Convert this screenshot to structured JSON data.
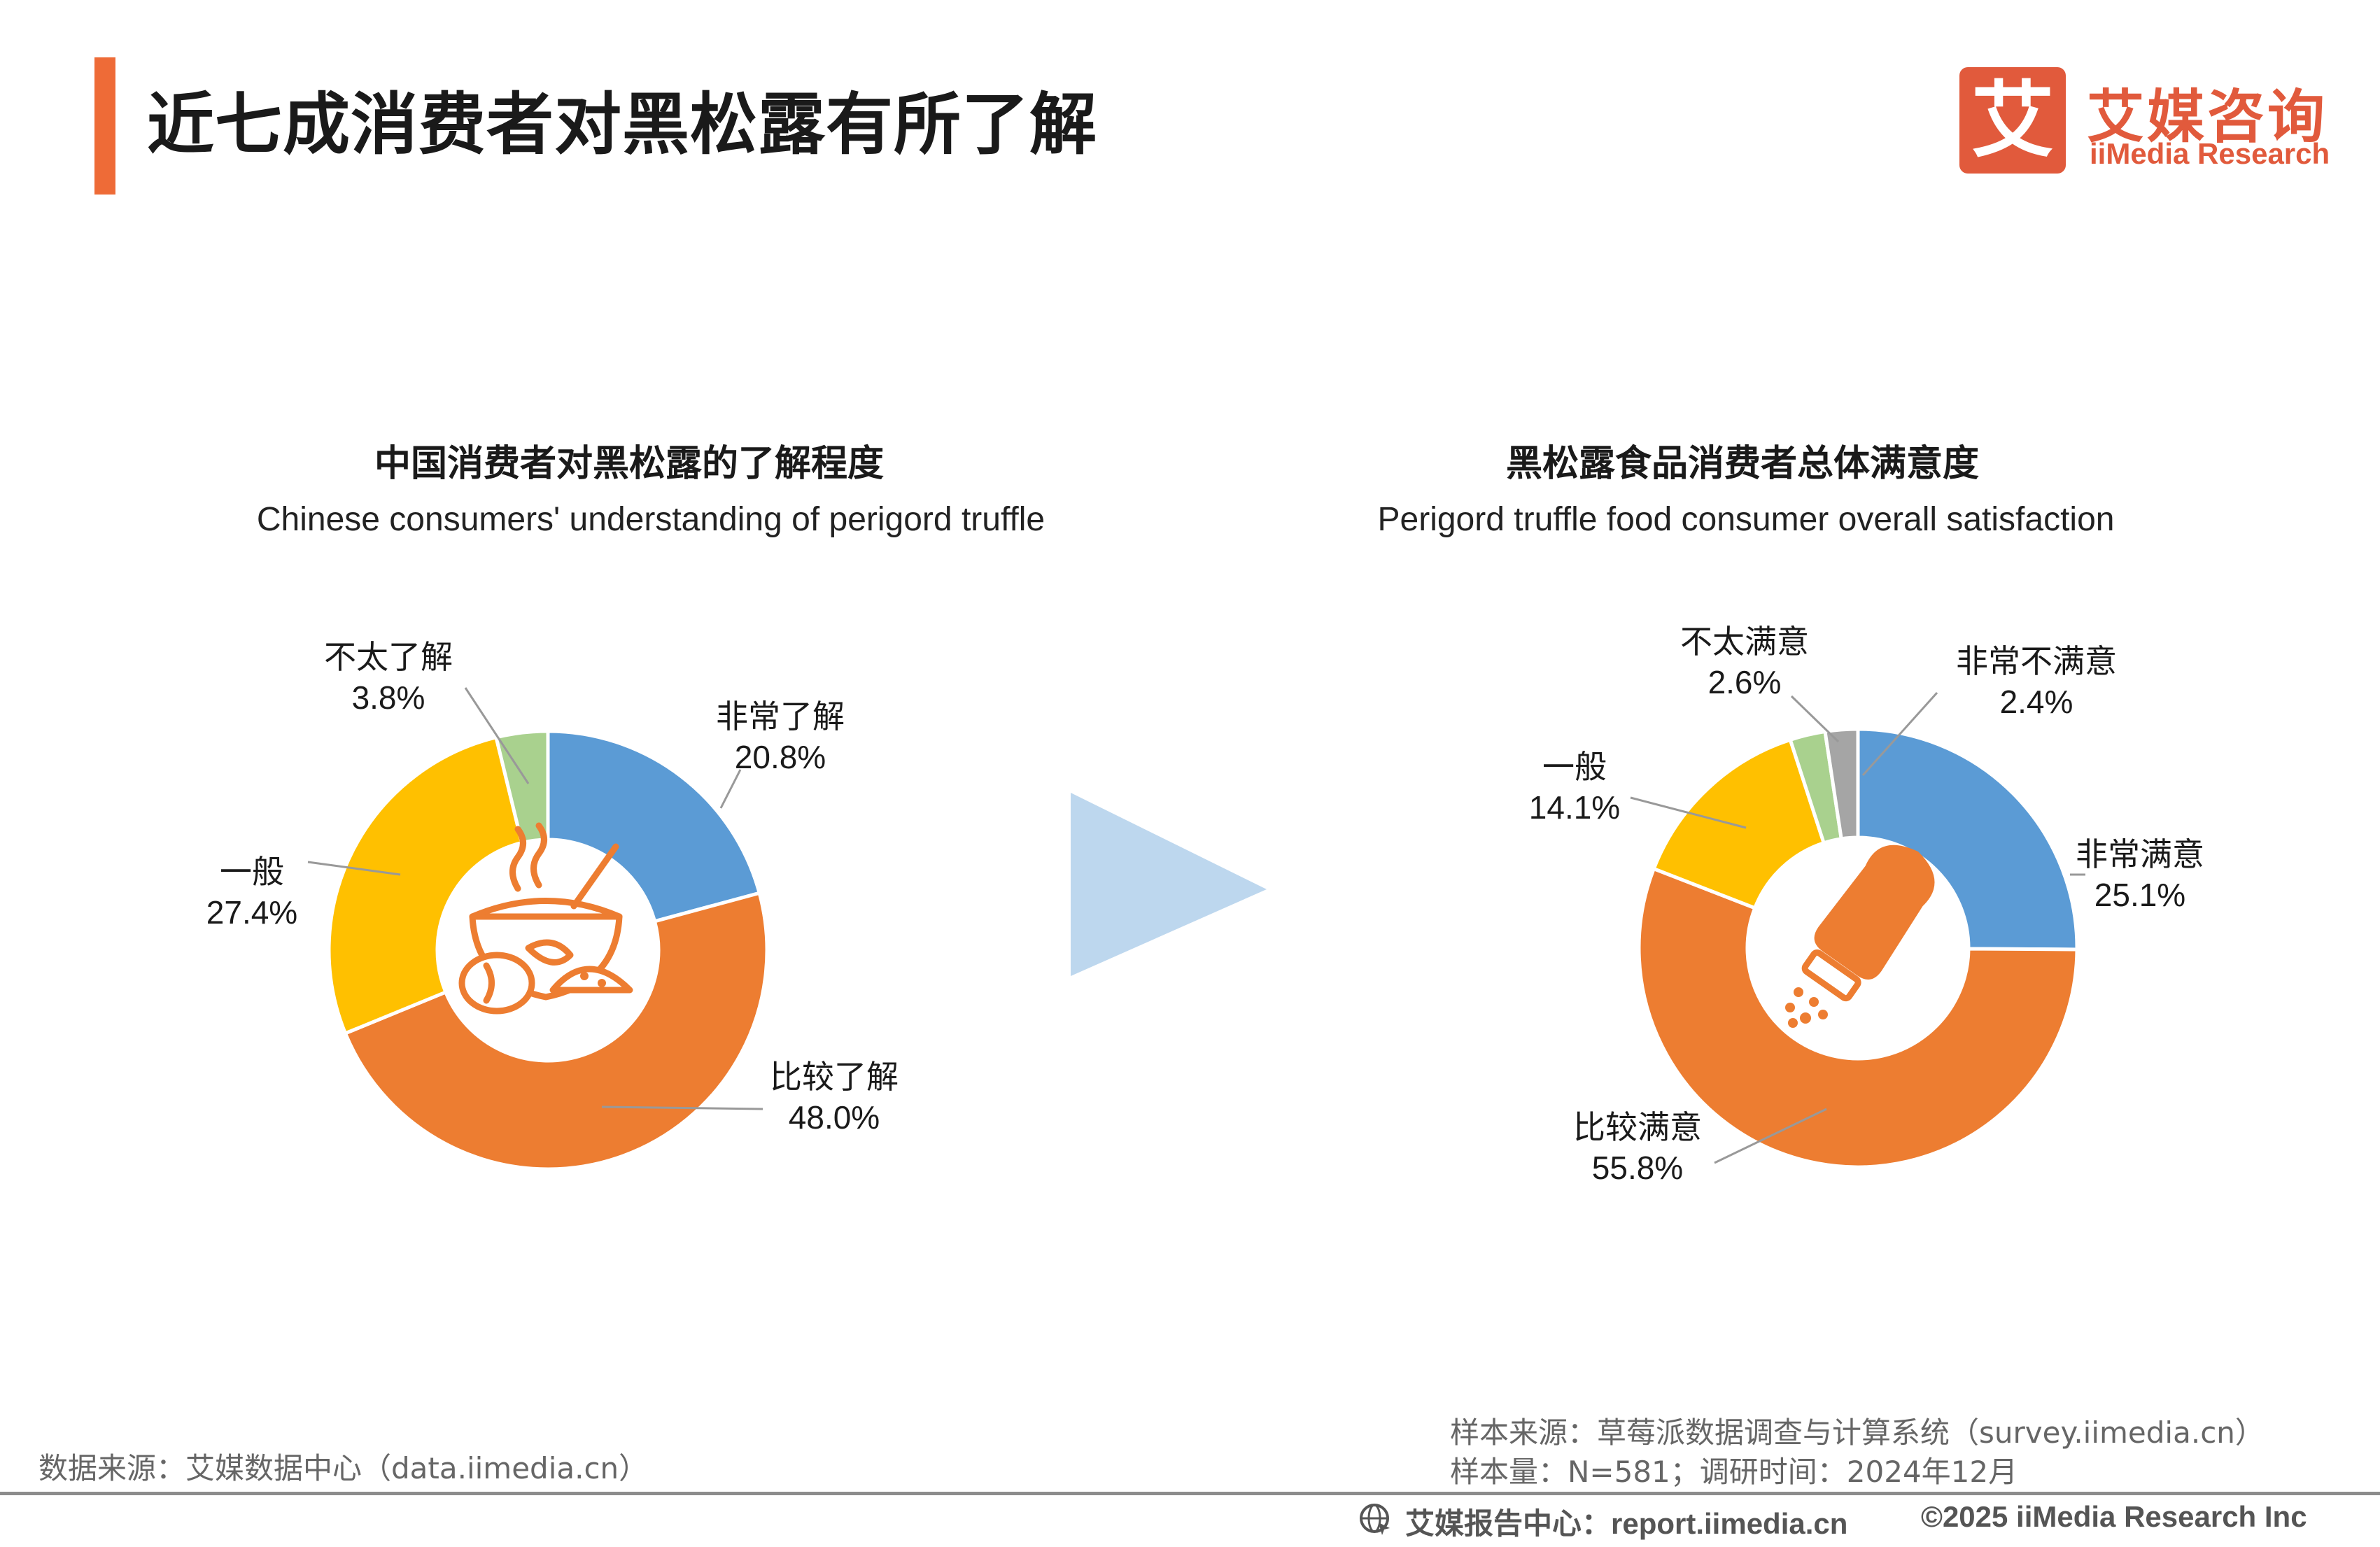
{
  "header": {
    "title": "近七成消费者对黑松露有所了解",
    "logo_cn": "艾媒咨询",
    "logo_en": "iiMedia Research",
    "logo_mark": "艾"
  },
  "colors": {
    "accent": "#ee6b37",
    "blue": "#5b9bd5",
    "orange": "#ed7d31",
    "yellow": "#ffc000",
    "green": "#a9d18e",
    "gray": "#a5a5a5",
    "arrow": "#bdd7ee"
  },
  "chart_data": [
    {
      "type": "pie",
      "donut": true,
      "title": "中国消费者对黑松露的了解程度",
      "subtitle": "Chinese consumers' understanding of perigord truffle",
      "center_icon": "soup-bowl-icon",
      "slices": [
        {
          "label": "非常了解",
          "value": 20.8,
          "display": "20.8%",
          "color": "#5b9bd5"
        },
        {
          "label": "比较了解",
          "value": 48.0,
          "display": "48.0%",
          "color": "#ed7d31"
        },
        {
          "label": "一般",
          "value": 27.4,
          "display": "27.4%",
          "color": "#ffc000"
        },
        {
          "label": "不太了解",
          "value": 3.8,
          "display": "3.8%",
          "color": "#a9d18e"
        }
      ]
    },
    {
      "type": "pie",
      "donut": true,
      "title": "黑松露食品消费者总体满意度",
      "subtitle": "Perigord truffle food consumer overall satisfaction",
      "center_icon": "salt-shaker-icon",
      "slices": [
        {
          "label": "非常满意",
          "value": 25.1,
          "display": "25.1%",
          "color": "#5b9bd5"
        },
        {
          "label": "比较满意",
          "value": 55.8,
          "display": "55.8%",
          "color": "#ed7d31"
        },
        {
          "label": "一般",
          "value": 14.1,
          "display": "14.1%",
          "color": "#ffc000"
        },
        {
          "label": "不太满意",
          "value": 2.6,
          "display": "2.6%",
          "color": "#a9d18e"
        },
        {
          "label": "非常不满意",
          "value": 2.4,
          "display": "2.4%",
          "color": "#a5a5a5"
        }
      ]
    }
  ],
  "footer": {
    "data_source": "数据来源：艾媒数据中心（data.iimedia.cn）",
    "sample_source": "样本来源：草莓派数据调查与计算系统（survey.iimedia.cn）",
    "sample_size": "样本量：N=581；调研时间：2024年12月",
    "report_center": "艾媒报告中心：report.iimedia.cn",
    "copyright": "©2025  iiMedia Research  Inc"
  }
}
